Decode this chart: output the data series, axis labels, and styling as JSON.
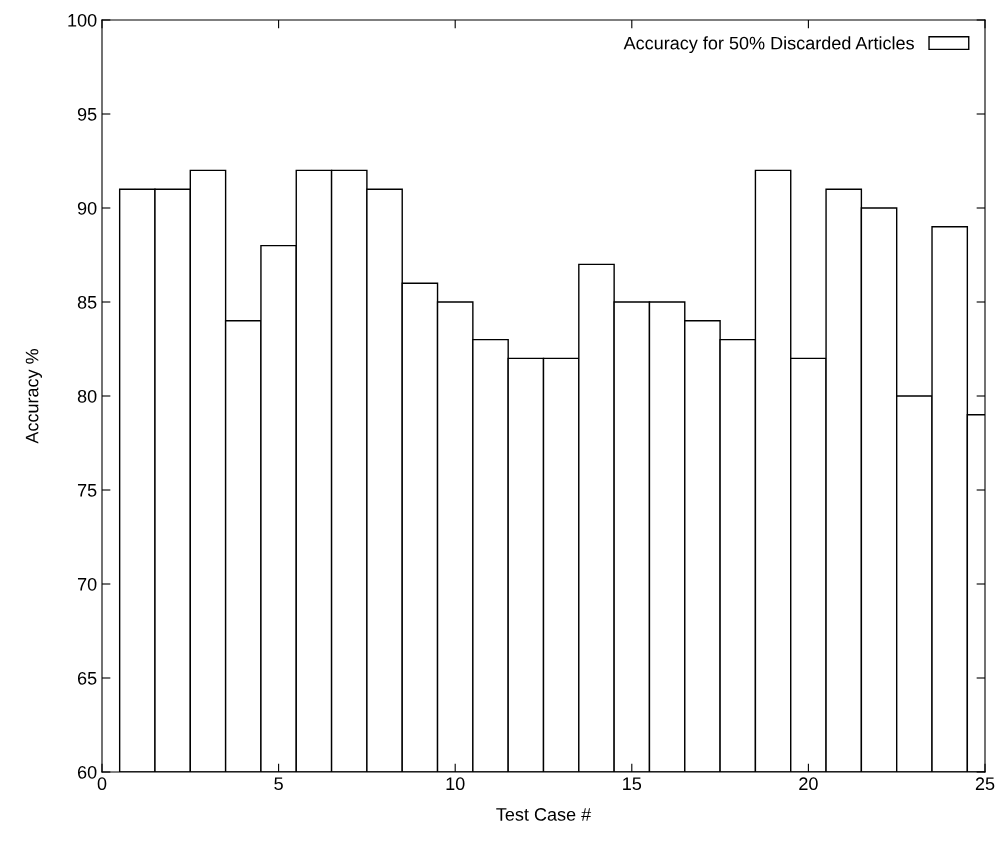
{
  "chart_data": {
    "type": "bar",
    "xlabel": "Test Case #",
    "ylabel": "Accuracy %",
    "x": [
      1,
      2,
      3,
      4,
      5,
      6,
      7,
      8,
      9,
      10,
      11,
      12,
      13,
      14,
      15,
      16,
      17,
      18,
      19,
      20,
      21,
      22,
      23,
      24,
      25
    ],
    "series": [
      {
        "name": "Accuracy for 50% Discarded Articles",
        "color": "#ffffff",
        "values": [
          91,
          91,
          92,
          84,
          88,
          92,
          92,
          91,
          86,
          85,
          83,
          82,
          82,
          87,
          85,
          85,
          84,
          83,
          92,
          82,
          91,
          90,
          80,
          89,
          79
        ]
      }
    ],
    "xlim": [
      0,
      25
    ],
    "xticks": [
      0,
      5,
      10,
      15,
      20,
      25
    ],
    "ylim": [
      60,
      100
    ],
    "yticks": [
      60,
      65,
      70,
      75,
      80,
      85,
      90,
      95,
      100
    ],
    "grid": false,
    "legend": "top right"
  }
}
